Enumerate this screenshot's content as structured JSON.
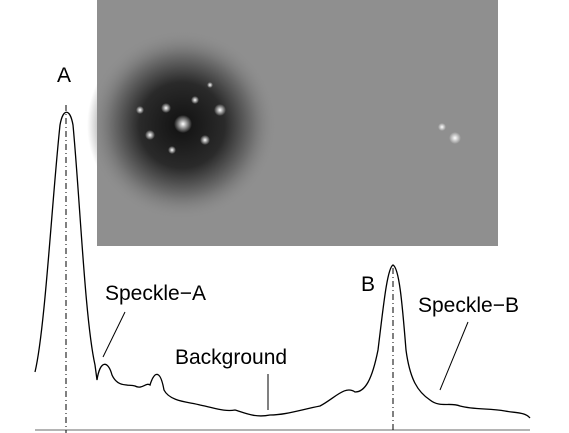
{
  "figure": {
    "labels": {
      "peak_a": "A",
      "speckle_a": "Speckle−A",
      "background": "Background",
      "peak_b": "B",
      "speckle_b": "Speckle−B"
    }
  }
}
